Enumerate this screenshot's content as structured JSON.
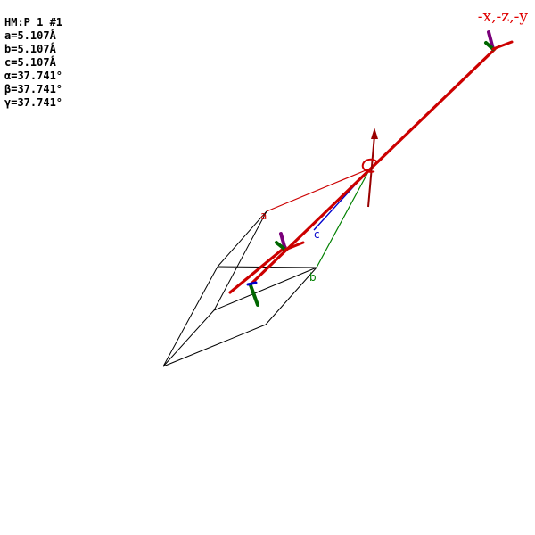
{
  "info": {
    "space_group": "HM:P 1 #1",
    "a": "a=5.107Å",
    "b": "b=5.107Å",
    "c": "c=5.107Å",
    "alpha": "α=37.741°",
    "beta": "β=37.741°",
    "gamma": "γ=37.741°"
  },
  "symmetry_operation": "-x,-z,-y",
  "axes": {
    "a": "a",
    "b": "b",
    "c": "c"
  },
  "colors": {
    "operation": "#e00000",
    "rotation_axis": "#cc0000",
    "axis_a": "#cc0000",
    "axis_b": "#008000",
    "axis_c": "#0000cc",
    "mirror_marker": "#7a007a",
    "cell_edges": "#000000"
  }
}
